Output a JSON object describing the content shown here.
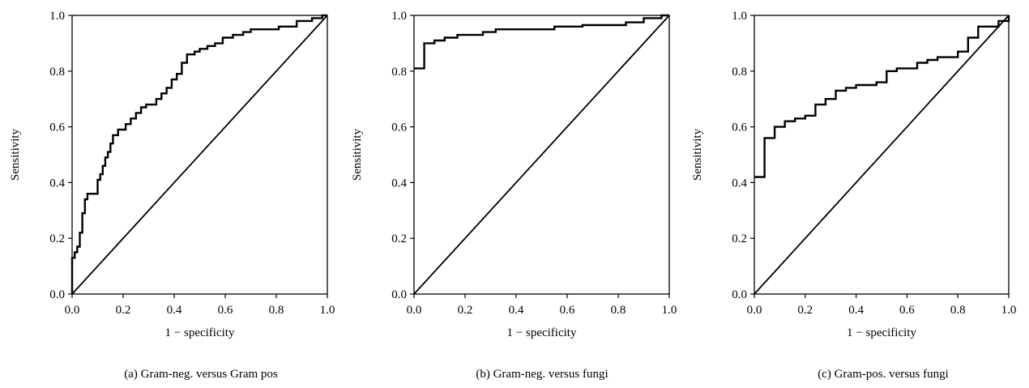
{
  "chart_data": [
    {
      "type": "line",
      "caption": "(a) Gram-neg. versus Gram pos",
      "xlabel": "1 − specificity",
      "ylabel": "Sensitivity",
      "xlim": [
        0,
        1
      ],
      "ylim": [
        0,
        1
      ],
      "xticks": [
        "0.0",
        "0.2",
        "0.4",
        "0.6",
        "0.8",
        "1.0"
      ],
      "yticks": [
        "0.0",
        "0.2",
        "0.4",
        "0.6",
        "0.8",
        "1.0"
      ],
      "grid": false,
      "series": [
        {
          "role": "roc",
          "points": [
            [
              0.0,
              0.0
            ],
            [
              0.0,
              0.13
            ],
            [
              0.01,
              0.13
            ],
            [
              0.01,
              0.15
            ],
            [
              0.02,
              0.15
            ],
            [
              0.02,
              0.17
            ],
            [
              0.03,
              0.17
            ],
            [
              0.03,
              0.22
            ],
            [
              0.04,
              0.22
            ],
            [
              0.04,
              0.29
            ],
            [
              0.05,
              0.29
            ],
            [
              0.05,
              0.34
            ],
            [
              0.06,
              0.34
            ],
            [
              0.06,
              0.36
            ],
            [
              0.1,
              0.36
            ],
            [
              0.1,
              0.41
            ],
            [
              0.11,
              0.41
            ],
            [
              0.11,
              0.43
            ],
            [
              0.12,
              0.43
            ],
            [
              0.12,
              0.46
            ],
            [
              0.13,
              0.46
            ],
            [
              0.13,
              0.49
            ],
            [
              0.14,
              0.49
            ],
            [
              0.14,
              0.51
            ],
            [
              0.15,
              0.51
            ],
            [
              0.15,
              0.54
            ],
            [
              0.16,
              0.54
            ],
            [
              0.16,
              0.57
            ],
            [
              0.18,
              0.57
            ],
            [
              0.18,
              0.59
            ],
            [
              0.21,
              0.59
            ],
            [
              0.21,
              0.61
            ],
            [
              0.23,
              0.61
            ],
            [
              0.23,
              0.63
            ],
            [
              0.25,
              0.63
            ],
            [
              0.25,
              0.65
            ],
            [
              0.27,
              0.65
            ],
            [
              0.27,
              0.67
            ],
            [
              0.29,
              0.67
            ],
            [
              0.29,
              0.68
            ],
            [
              0.33,
              0.68
            ],
            [
              0.33,
              0.7
            ],
            [
              0.35,
              0.7
            ],
            [
              0.35,
              0.72
            ],
            [
              0.37,
              0.72
            ],
            [
              0.37,
              0.74
            ],
            [
              0.39,
              0.74
            ],
            [
              0.39,
              0.77
            ],
            [
              0.41,
              0.77
            ],
            [
              0.41,
              0.79
            ],
            [
              0.43,
              0.79
            ],
            [
              0.43,
              0.83
            ],
            [
              0.45,
              0.83
            ],
            [
              0.45,
              0.86
            ],
            [
              0.48,
              0.86
            ],
            [
              0.48,
              0.87
            ],
            [
              0.5,
              0.87
            ],
            [
              0.5,
              0.88
            ],
            [
              0.53,
              0.88
            ],
            [
              0.53,
              0.89
            ],
            [
              0.56,
              0.89
            ],
            [
              0.56,
              0.9
            ],
            [
              0.59,
              0.9
            ],
            [
              0.59,
              0.92
            ],
            [
              0.63,
              0.92
            ],
            [
              0.63,
              0.93
            ],
            [
              0.67,
              0.93
            ],
            [
              0.67,
              0.94
            ],
            [
              0.7,
              0.94
            ],
            [
              0.7,
              0.95
            ],
            [
              0.81,
              0.95
            ],
            [
              0.81,
              0.96
            ],
            [
              0.88,
              0.96
            ],
            [
              0.88,
              0.98
            ],
            [
              0.94,
              0.98
            ],
            [
              0.94,
              0.99
            ],
            [
              0.98,
              0.99
            ],
            [
              0.98,
              1.0
            ],
            [
              1.0,
              1.0
            ]
          ]
        },
        {
          "role": "reference",
          "points": [
            [
              0,
              0
            ],
            [
              1,
              1
            ]
          ]
        }
      ]
    },
    {
      "type": "line",
      "caption": "(b) Gram-neg. versus fungi",
      "xlabel": "1 − specificity",
      "ylabel": "Sensitivity",
      "xlim": [
        0,
        1
      ],
      "ylim": [
        0,
        1
      ],
      "xticks": [
        "0.0",
        "0.2",
        "0.4",
        "0.6",
        "0.8",
        "1.0"
      ],
      "yticks": [
        "0.0",
        "0.2",
        "0.4",
        "0.6",
        "0.8",
        "1.0"
      ],
      "grid": false,
      "series": [
        {
          "role": "roc",
          "points": [
            [
              0.0,
              0.81
            ],
            [
              0.04,
              0.81
            ],
            [
              0.04,
              0.9
            ],
            [
              0.08,
              0.9
            ],
            [
              0.08,
              0.91
            ],
            [
              0.12,
              0.91
            ],
            [
              0.12,
              0.92
            ],
            [
              0.17,
              0.92
            ],
            [
              0.17,
              0.93
            ],
            [
              0.27,
              0.93
            ],
            [
              0.27,
              0.94
            ],
            [
              0.32,
              0.94
            ],
            [
              0.32,
              0.95
            ],
            [
              0.55,
              0.95
            ],
            [
              0.55,
              0.96
            ],
            [
              0.66,
              0.96
            ],
            [
              0.66,
              0.965
            ],
            [
              0.83,
              0.965
            ],
            [
              0.83,
              0.975
            ],
            [
              0.9,
              0.975
            ],
            [
              0.9,
              0.99
            ],
            [
              0.97,
              0.99
            ],
            [
              0.97,
              1.0
            ],
            [
              1.0,
              1.0
            ]
          ]
        },
        {
          "role": "reference",
          "points": [
            [
              0,
              0
            ],
            [
              1,
              1
            ]
          ]
        }
      ]
    },
    {
      "type": "line",
      "caption": "(c) Gram-pos. versus fungi",
      "xlabel": "1 − specificity",
      "ylabel": "Sensitivity",
      "xlim": [
        0,
        1
      ],
      "ylim": [
        0,
        1
      ],
      "xticks": [
        "0.0",
        "0.2",
        "0.4",
        "0.6",
        "0.8",
        "1.0"
      ],
      "yticks": [
        "0.0",
        "0.2",
        "0.4",
        "0.6",
        "0.8",
        "1.0"
      ],
      "grid": false,
      "series": [
        {
          "role": "roc",
          "points": [
            [
              0.0,
              0.42
            ],
            [
              0.04,
              0.42
            ],
            [
              0.04,
              0.56
            ],
            [
              0.08,
              0.56
            ],
            [
              0.08,
              0.6
            ],
            [
              0.12,
              0.6
            ],
            [
              0.12,
              0.62
            ],
            [
              0.16,
              0.62
            ],
            [
              0.16,
              0.63
            ],
            [
              0.2,
              0.63
            ],
            [
              0.2,
              0.64
            ],
            [
              0.24,
              0.64
            ],
            [
              0.24,
              0.68
            ],
            [
              0.28,
              0.68
            ],
            [
              0.28,
              0.7
            ],
            [
              0.32,
              0.7
            ],
            [
              0.32,
              0.73
            ],
            [
              0.36,
              0.73
            ],
            [
              0.36,
              0.74
            ],
            [
              0.4,
              0.74
            ],
            [
              0.4,
              0.75
            ],
            [
              0.48,
              0.75
            ],
            [
              0.48,
              0.76
            ],
            [
              0.52,
              0.76
            ],
            [
              0.52,
              0.8
            ],
            [
              0.56,
              0.8
            ],
            [
              0.56,
              0.81
            ],
            [
              0.64,
              0.81
            ],
            [
              0.64,
              0.83
            ],
            [
              0.68,
              0.83
            ],
            [
              0.68,
              0.84
            ],
            [
              0.72,
              0.84
            ],
            [
              0.72,
              0.85
            ],
            [
              0.8,
              0.85
            ],
            [
              0.8,
              0.87
            ],
            [
              0.84,
              0.87
            ],
            [
              0.84,
              0.92
            ],
            [
              0.88,
              0.92
            ],
            [
              0.88,
              0.96
            ],
            [
              0.96,
              0.96
            ],
            [
              0.96,
              0.98
            ],
            [
              1.0,
              0.98
            ],
            [
              1.0,
              1.0
            ]
          ]
        },
        {
          "role": "reference",
          "points": [
            [
              0,
              0
            ],
            [
              1,
              1
            ]
          ]
        }
      ]
    }
  ]
}
